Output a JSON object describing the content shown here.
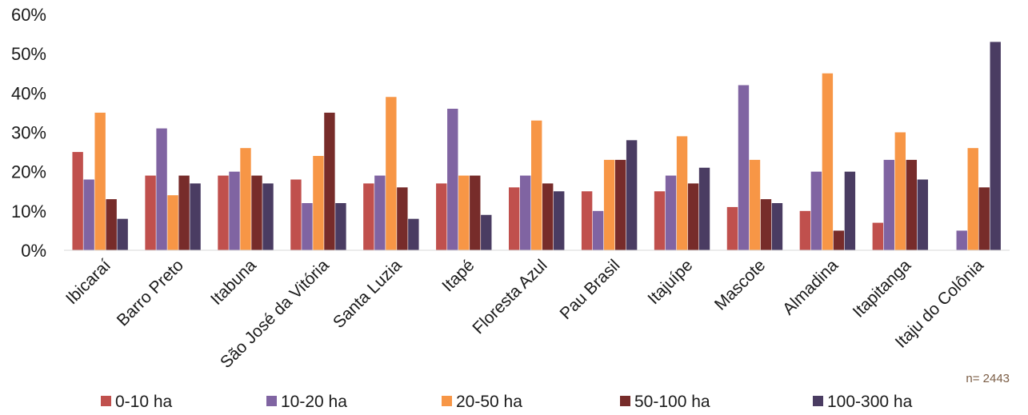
{
  "chart_data": {
    "type": "bar",
    "categories": [
      "Ibicaraí",
      "Barro Preto",
      "Itabuna",
      "São José da Vitória",
      "Santa Luzia",
      "Itapé",
      "Floresta Azul",
      "Pau Brasil",
      "Itajuípe",
      "Mascote",
      "Almadina",
      "Itapitanga",
      "Itaju do Colônia"
    ],
    "series": [
      {
        "name": "0-10 ha",
        "color": "#c0504d",
        "values": [
          25,
          19,
          19,
          18,
          17,
          17,
          16,
          15,
          15,
          11,
          10,
          7,
          0
        ]
      },
      {
        "name": "10-20  ha",
        "color": "#8064a2",
        "values": [
          18,
          31,
          20,
          12,
          19,
          36,
          19,
          10,
          19,
          42,
          20,
          23,
          5
        ]
      },
      {
        "name": "20-50 ha",
        "color": "#f79646",
        "values": [
          35,
          14,
          26,
          24,
          39,
          19,
          33,
          23,
          29,
          23,
          45,
          30,
          26
        ]
      },
      {
        "name": "50-100 ha",
        "color": "#772c2a",
        "values": [
          13,
          19,
          19,
          35,
          16,
          19,
          17,
          23,
          17,
          13,
          5,
          23,
          16
        ]
      },
      {
        "name": "100-300 ha",
        "color": "#4a3c62",
        "values": [
          8,
          17,
          17,
          12,
          8,
          9,
          15,
          28,
          21,
          12,
          20,
          18,
          53
        ]
      }
    ],
    "yticks": [
      "0%",
      "10%",
      "20%",
      "30%",
      "40%",
      "50%",
      "60%"
    ],
    "ylim": [
      0,
      60
    ],
    "grid": false,
    "legend_position": "bottom",
    "note": "n= 2443"
  }
}
